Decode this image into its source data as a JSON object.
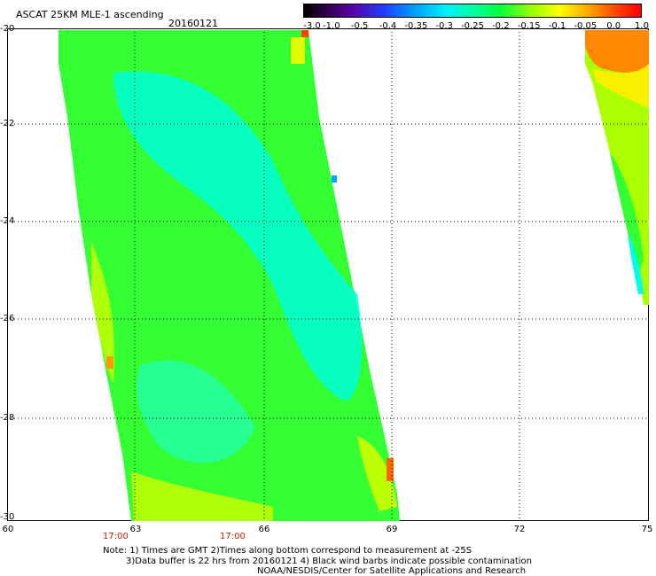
{
  "header": {
    "title": "ASCAT 25KM MLE-1 ascending",
    "date": "20160121"
  },
  "colorbar": {
    "labels": [
      "-3.0",
      "-1.0",
      "-0.5",
      "-0.4",
      "-0.35",
      "-0.3",
      "-0.25",
      "-0.2",
      "-0.15",
      "-0.1",
      "-0.05",
      "0.0",
      "1.0"
    ]
  },
  "axes": {
    "lat_labels": [
      "-20",
      "-22",
      "-24",
      "-26",
      "-28",
      "-30"
    ],
    "lon_labels": [
      "60",
      "63",
      "66",
      "69",
      "72",
      "75"
    ]
  },
  "times": [
    "17:00",
    "17:00"
  ],
  "notes": {
    "line1": "Note: 1) Times are GMT 2)Times along bottom correspond to measurement at -25S",
    "line2": "3)Data buffer is 22 hrs from 20160121 4) Black wind barbs indicate possible contamination",
    "line3": "NOAA/NESDIS/Center for Satellite Applications and Research"
  },
  "colors": {
    "dominant_field": "#33ff33",
    "cyan_region": "#00ffe0",
    "yellow_region": "#ccff00",
    "orange_region": "#ff8800",
    "time_label": "#cc2200"
  }
}
